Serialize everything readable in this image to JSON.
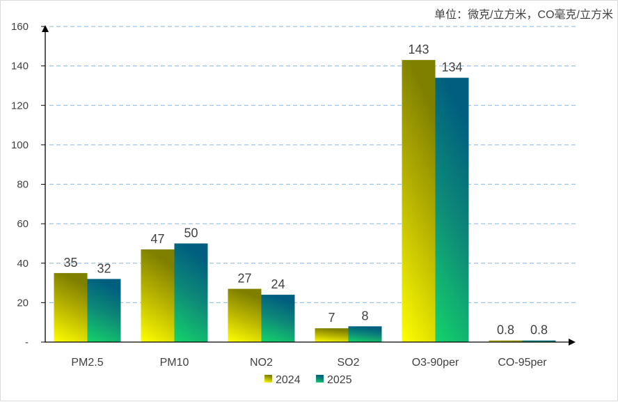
{
  "chart_data": {
    "type": "bar",
    "title": "",
    "unit_note": "单位：微克/立方米，CO毫克/立方米",
    "categories": [
      "PM2.5",
      "PM10",
      "NO2",
      "SO2",
      "O3-90per",
      "CO-95per"
    ],
    "series": [
      {
        "name": "2024",
        "values": [
          35,
          47,
          27,
          7,
          143,
          0.8
        ],
        "labels": [
          "35",
          "47",
          "27",
          "7",
          "143",
          "0.8"
        ]
      },
      {
        "name": "2025",
        "values": [
          32,
          50,
          24,
          8,
          134,
          0.8
        ],
        "labels": [
          "32",
          "50",
          "24",
          "8",
          "134",
          "0.8"
        ]
      }
    ],
    "ylim": [
      0,
      160
    ],
    "yticks": [
      0,
      20,
      40,
      60,
      80,
      100,
      120,
      140,
      160
    ],
    "ytick_labels": [
      "-",
      "20",
      "40",
      "60",
      "80",
      "100",
      "120",
      "140",
      "160"
    ],
    "grid": true,
    "legend_position": "bottom-center",
    "xlabel": "",
    "ylabel": ""
  }
}
